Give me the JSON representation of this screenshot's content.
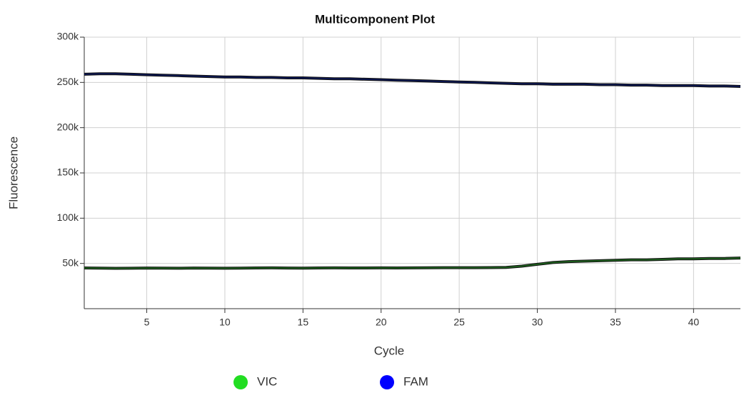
{
  "chart_data": {
    "type": "line",
    "title": "Multicomponent Plot",
    "x_label": "Cycle",
    "y_label": "Fluorescence",
    "x": [
      1,
      2,
      3,
      4,
      5,
      6,
      7,
      8,
      9,
      10,
      11,
      12,
      13,
      14,
      15,
      16,
      17,
      18,
      19,
      20,
      21,
      22,
      23,
      24,
      25,
      26,
      27,
      28,
      29,
      30,
      31,
      32,
      33,
      34,
      35,
      36,
      37,
      38,
      39,
      40,
      41,
      42,
      43
    ],
    "series": [
      {
        "name": "VIC",
        "color": "#22dd22",
        "line_color": "#1e5e1e",
        "values": [
          45000,
          44800,
          44600,
          44700,
          44900,
          44800,
          44700,
          44900,
          44800,
          44700,
          44800,
          45000,
          45100,
          44900,
          44800,
          45000,
          45100,
          45000,
          45000,
          45100,
          45000,
          45100,
          45200,
          45300,
          45300,
          45300,
          45400,
          45600,
          47000,
          49000,
          51000,
          52000,
          52500,
          53000,
          53500,
          54000,
          54000,
          54500,
          55000,
          55000,
          55500,
          55500,
          56000
        ]
      },
      {
        "name": "FAM",
        "color": "#0000ff",
        "line_color": "#0b1650",
        "values": [
          259000,
          259500,
          259500,
          259000,
          258500,
          258000,
          257500,
          257000,
          256500,
          256000,
          256000,
          255500,
          255500,
          255000,
          255000,
          254500,
          254000,
          254000,
          253500,
          253000,
          252500,
          252000,
          251500,
          251000,
          250500,
          250000,
          249500,
          249000,
          248500,
          248500,
          248000,
          248000,
          248000,
          247500,
          247500,
          247000,
          247000,
          246500,
          246500,
          246500,
          246000,
          246000,
          245500
        ]
      }
    ],
    "xlim": [
      1,
      43
    ],
    "xticks": [
      5,
      10,
      15,
      20,
      25,
      30,
      35,
      40
    ],
    "ylim": [
      0,
      300000
    ],
    "yticks": [
      {
        "value": 50000,
        "label": "50k"
      },
      {
        "value": 100000,
        "label": "100k"
      },
      {
        "value": 150000,
        "label": "150k"
      },
      {
        "value": 200000,
        "label": "200k"
      },
      {
        "value": 250000,
        "label": "250k"
      },
      {
        "value": 300000,
        "label": "300k"
      }
    ],
    "grid": true
  }
}
